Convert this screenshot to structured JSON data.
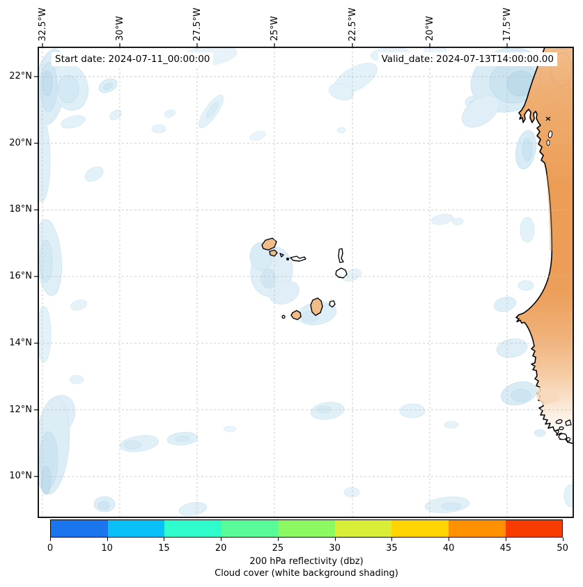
{
  "annotations": {
    "start_date": "Start date: 2024-07-11_00:00:00",
    "valid_date": "Valid_date: 2024-07-13T14:00:00.00"
  },
  "axes": {
    "lon_ticks": [
      "32.5°W",
      "30°W",
      "27.5°W",
      "25°W",
      "22.5°W",
      "20°W",
      "17.5°W"
    ],
    "lat_ticks": [
      "22°N",
      "20°N",
      "18°N",
      "16°N",
      "14°N",
      "12°N",
      "10°N"
    ]
  },
  "colorbar": {
    "tick_labels": [
      "0",
      "10",
      "15",
      "20",
      "25",
      "30",
      "35",
      "40",
      "45",
      "50"
    ],
    "levels": [
      0,
      10,
      15,
      20,
      25,
      30,
      35,
      40,
      45,
      50
    ],
    "segment_colors": [
      "#1b76ee",
      "#09c1f8",
      "#2efccd",
      "#58fb97",
      "#8cf862",
      "#d9ee37",
      "#ffd400",
      "#ff9000",
      "#f83c00"
    ],
    "caption_line1": "200 hPa reflectivity (dbz)",
    "caption_line2": "Cloud cover (white background shading)"
  },
  "map": {
    "land_color_dark": "#ec9d55",
    "land_color_light": "#f2bd8d",
    "island_fill_orange": "#f2bc89",
    "cloud_color_light": "#e3f1f8",
    "cloud_color_mid": "#d8ecf5",
    "cloud_color_dark": "#bcdcec",
    "coastline_color": "#000000",
    "gridline_color": "#bfbfbf",
    "ocean_color": "#ffffff"
  }
}
